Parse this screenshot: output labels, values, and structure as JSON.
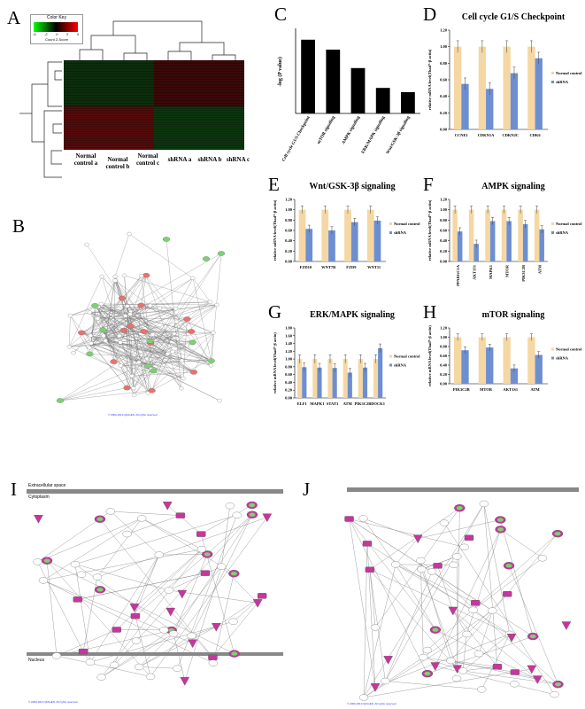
{
  "panels": {
    "a": "A",
    "b": "B",
    "c": "C",
    "d": "D",
    "e": "E",
    "f": "F",
    "g": "G",
    "h": "H",
    "i": "I",
    "j": "J"
  },
  "heatmap": {
    "color_key_title": "Color Key",
    "color_key_axis": "Count Z-Score",
    "key_ticks": [
      "-4",
      "-2",
      "0",
      "2",
      "4"
    ],
    "samples": [
      "Normal control a",
      "Normal control b",
      "Normal control c",
      "shRNA a",
      "shRNA b",
      "shRNA c"
    ]
  },
  "colors": {
    "bar_c": "#000000",
    "normal": "#f5d7a3",
    "shrna": "#6d8fd1",
    "node_green": "#7cd173",
    "node_red": "#e8726c",
    "node_magenta": "#c8359e",
    "membrane": "#888888"
  },
  "network_b": {
    "caption": "© 2000-2013 QIAGEN. All rights reserved"
  },
  "pathway_i": {
    "extracellular": "Extracellular space",
    "cytoplasm": "Cytoplasm",
    "nucleus": "Nucleus",
    "copyright": "© 2000-2013 QIAGEN. All rights reserved"
  },
  "pathway_j": {
    "copyright": "© 2000-2013 QIAGEN. All rights reserved"
  },
  "chart_data": [
    {
      "id": "C",
      "type": "bar",
      "title": "",
      "ylabel": "-log (P value)",
      "categories": [
        "Cell cycle G1/S Checkpoint",
        "mTOR signaling",
        "AMPK signaling",
        "ERK/MAPK signaling",
        "Wnt/GSK-3β signaling"
      ],
      "values": [
        5.2,
        4.5,
        3.2,
        1.8,
        1.5
      ],
      "ylim": [
        0,
        6
      ]
    },
    {
      "id": "D",
      "type": "bar",
      "title": "Cell cycle G1/S Checkpoint",
      "ylabel": "relative mRNA level(Thad*-β actin)",
      "categories": [
        "CCNE1",
        "CDKN1A",
        "CDKN2C",
        "CDK6"
      ],
      "series": [
        {
          "name": "Normal control",
          "values": [
            1.0,
            1.0,
            1.0,
            1.0
          ]
        },
        {
          "name": "shRNA",
          "values": [
            0.55,
            0.49,
            0.68,
            0.86
          ]
        }
      ],
      "ylim": [
        0,
        1.2
      ],
      "yticks": [
        "0.00",
        "0.20",
        "0.40",
        "0.60",
        "0.80",
        "1.00",
        "1.20"
      ]
    },
    {
      "id": "E",
      "type": "bar",
      "title": "Wnt/GSK-3β signaling",
      "ylabel": "relative mRNA level(Thad*-β actin)",
      "categories": [
        "FZD10",
        "WNT7B",
        "FZD9",
        "WNT11"
      ],
      "series": [
        {
          "name": "Normal control",
          "values": [
            1.0,
            1.0,
            1.0,
            1.0
          ]
        },
        {
          "name": "shRNA",
          "values": [
            0.63,
            0.6,
            0.76,
            0.79
          ]
        }
      ],
      "ylim": [
        0,
        1.2
      ],
      "yticks": [
        "0.00",
        "0.20",
        "0.40",
        "0.60",
        "0.80",
        "1.00",
        "1.20"
      ]
    },
    {
      "id": "F",
      "type": "bar",
      "title": "AMPK signaling",
      "ylabel": "relative mRNA level(Thad*-β actin)",
      "categories": [
        "PPARGC1A",
        "AKT1S1",
        "MAPK1",
        "MTOR",
        "PIK3C2B",
        "ATM"
      ],
      "series": [
        {
          "name": "Normal control",
          "values": [
            1.0,
            1.0,
            1.0,
            1.0,
            1.0,
            1.0
          ]
        },
        {
          "name": "shRNA",
          "values": [
            0.58,
            0.34,
            0.78,
            0.78,
            0.72,
            0.62
          ]
        }
      ],
      "ylim": [
        0,
        1.2
      ],
      "yticks": [
        "0.00",
        "0.20",
        "0.40",
        "0.60",
        "0.80",
        "1.00",
        "1.20"
      ]
    },
    {
      "id": "G",
      "type": "bar",
      "title": "ERK/MAPK signaling",
      "ylabel": "relative mRNA level(Thad*-β actin)",
      "categories": [
        "ELF1",
        "MAPK1",
        "STAT3",
        "ATM",
        "PIK3C2B",
        "DOCK1"
      ],
      "series": [
        {
          "name": "Normal control",
          "values": [
            1.0,
            1.0,
            1.0,
            1.0,
            1.0,
            1.0
          ]
        },
        {
          "name": "shRNA",
          "values": [
            0.79,
            0.78,
            0.77,
            0.65,
            0.78,
            1.28
          ]
        }
      ],
      "ylim": [
        0,
        1.8
      ],
      "yticks": [
        "0.00",
        "0.20",
        "0.40",
        "0.60",
        "0.80",
        "1.00",
        "1.20",
        "1.40",
        "1.60",
        "1.80"
      ]
    },
    {
      "id": "H",
      "type": "bar",
      "title": "mTOR signaling",
      "ylabel": "relative mRNA level(Thad*-β actin)",
      "categories": [
        "PIK3C2B",
        "MTOR",
        "AKT1S1",
        "ATM"
      ],
      "series": [
        {
          "name": "Normal control",
          "values": [
            1.0,
            1.0,
            1.0,
            1.0
          ]
        },
        {
          "name": "shRNA",
          "values": [
            0.72,
            0.78,
            0.33,
            0.62
          ]
        }
      ],
      "ylim": [
        0,
        1.2
      ],
      "yticks": [
        "0.00",
        "0.20",
        "0.40",
        "0.60",
        "0.80",
        "1.00",
        "1.20"
      ]
    }
  ]
}
